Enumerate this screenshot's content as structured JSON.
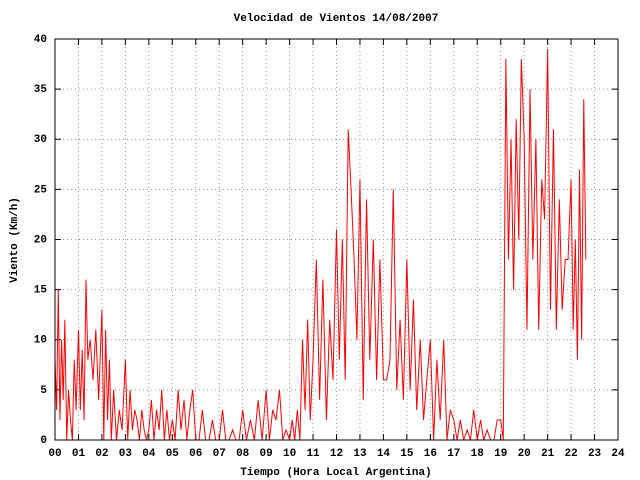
{
  "chart_data": {
    "type": "line",
    "title": "Velocidad de Vientos 14/08/2007",
    "x_label": "Tiempo (Hora Local Argentina)",
    "y_label": "Viento (Km/h)",
    "xlim": [
      0,
      24
    ],
    "ylim": [
      0,
      40
    ],
    "xticks": [
      {
        "value": 0,
        "label": "00"
      },
      {
        "value": 1,
        "label": "01"
      },
      {
        "value": 2,
        "label": "02"
      },
      {
        "value": 3,
        "label": "03"
      },
      {
        "value": 4,
        "label": "04"
      },
      {
        "value": 5,
        "label": "05"
      },
      {
        "value": 6,
        "label": "06"
      },
      {
        "value": 7,
        "label": "07"
      },
      {
        "value": 8,
        "label": "08"
      },
      {
        "value": 9,
        "label": "09"
      },
      10,
      11,
      12,
      13,
      14,
      15,
      16,
      17,
      18,
      19,
      20,
      21,
      22,
      23,
      24
    ],
    "yticks": [
      0,
      5,
      10,
      15,
      20,
      25,
      30,
      35,
      40
    ],
    "grid": true,
    "x": [
      0,
      0.07,
      0.14,
      0.21,
      0.28,
      0.35,
      0.42,
      0.5,
      0.58,
      0.66,
      0.74,
      0.82,
      0.9,
      1,
      1.08,
      1.16,
      1.24,
      1.32,
      1.4,
      1.5,
      1.62,
      1.74,
      1.86,
      2,
      2.08,
      2.16,
      2.24,
      2.32,
      2.4,
      2.5,
      2.62,
      2.74,
      2.86,
      3,
      3.1,
      3.2,
      3.3,
      3.4,
      3.5,
      3.6,
      3.7,
      3.8,
      3.9,
      4,
      4.11,
      4.22,
      4.33,
      4.44,
      4.55,
      4.66,
      4.77,
      4.88,
      5,
      5.12,
      5.25,
      5.37,
      5.5,
      5.62,
      5.75,
      5.87,
      6,
      6.14,
      6.28,
      6.42,
      6.57,
      6.71,
      6.85,
      7,
      7.14,
      7.28,
      7.42,
      7.57,
      7.71,
      7.85,
      8,
      8.16,
      8.33,
      8.5,
      8.66,
      8.83,
      9,
      9.14,
      9.28,
      9.42,
      9.57,
      9.71,
      9.85,
      10,
      10.11,
      10.22,
      10.33,
      10.44,
      10.55,
      10.66,
      10.77,
      10.88,
      11,
      11.14,
      11.28,
      11.42,
      11.57,
      11.71,
      11.85,
      12,
      12.12,
      12.25,
      12.37,
      12.5,
      12.62,
      12.75,
      12.87,
      13,
      13.14,
      13.28,
      13.42,
      13.57,
      13.71,
      13.85,
      14,
      14.14,
      14.28,
      14.42,
      14.57,
      14.71,
      14.85,
      15,
      15.14,
      15.28,
      15.42,
      15.57,
      15.71,
      15.85,
      16,
      16.14,
      16.28,
      16.42,
      16.57,
      16.71,
      16.85,
      17,
      17.14,
      17.28,
      17.42,
      17.57,
      17.71,
      17.85,
      18,
      18.14,
      18.28,
      18.42,
      18.57,
      18.71,
      18.85,
      19,
      19.11,
      19.22,
      19.33,
      19.44,
      19.55,
      19.66,
      19.77,
      19.88,
      20,
      20.12,
      20.25,
      20.37,
      20.5,
      20.62,
      20.75,
      20.87,
      21,
      21.12,
      21.25,
      21.37,
      21.5,
      21.62,
      21.75,
      21.87,
      22,
      22.09,
      22.18,
      22.27,
      22.36,
      22.45,
      22.54,
      22.63
    ],
    "series": [
      {
        "color": "#ff0000",
        "values": [
          8,
          3,
          15,
          2,
          10,
          4,
          12,
          0,
          5,
          2,
          0,
          8,
          3,
          11,
          3,
          9,
          2,
          16,
          8,
          10,
          6,
          11,
          4,
          13,
          0,
          11,
          2,
          8,
          0,
          5,
          0,
          3,
          1,
          8,
          0,
          5,
          1,
          3,
          2,
          0,
          3,
          1,
          0,
          1,
          4,
          0,
          3,
          1,
          5,
          0,
          3,
          0,
          2,
          0,
          5,
          1,
          4,
          0,
          3,
          5,
          0,
          0,
          3,
          0,
          0,
          2,
          0,
          0,
          3,
          0,
          0,
          1,
          0,
          0,
          3,
          0,
          2,
          0,
          4,
          0,
          5,
          0,
          3,
          2,
          5,
          0,
          1,
          0,
          2,
          0,
          3,
          0,
          10,
          3,
          12,
          2,
          8,
          18,
          4,
          16,
          2,
          12,
          6,
          21,
          8,
          20,
          6,
          31,
          25,
          18,
          10,
          26,
          4,
          24,
          8,
          20,
          6,
          18,
          6,
          6,
          8,
          25,
          5,
          12,
          4,
          18,
          5,
          14,
          3,
          10,
          2,
          6,
          10,
          0,
          8,
          2,
          10,
          0,
          3,
          2,
          0,
          2,
          0,
          1,
          0,
          3,
          0,
          2,
          0,
          1,
          0,
          0,
          2,
          2,
          0,
          38,
          18,
          30,
          15,
          32,
          20,
          38,
          30,
          11,
          35,
          18,
          30,
          11,
          26,
          22,
          39,
          13,
          31,
          11,
          24,
          13,
          18,
          18,
          26,
          11,
          20,
          8,
          27,
          10,
          34,
          18
        ]
      }
    ]
  }
}
